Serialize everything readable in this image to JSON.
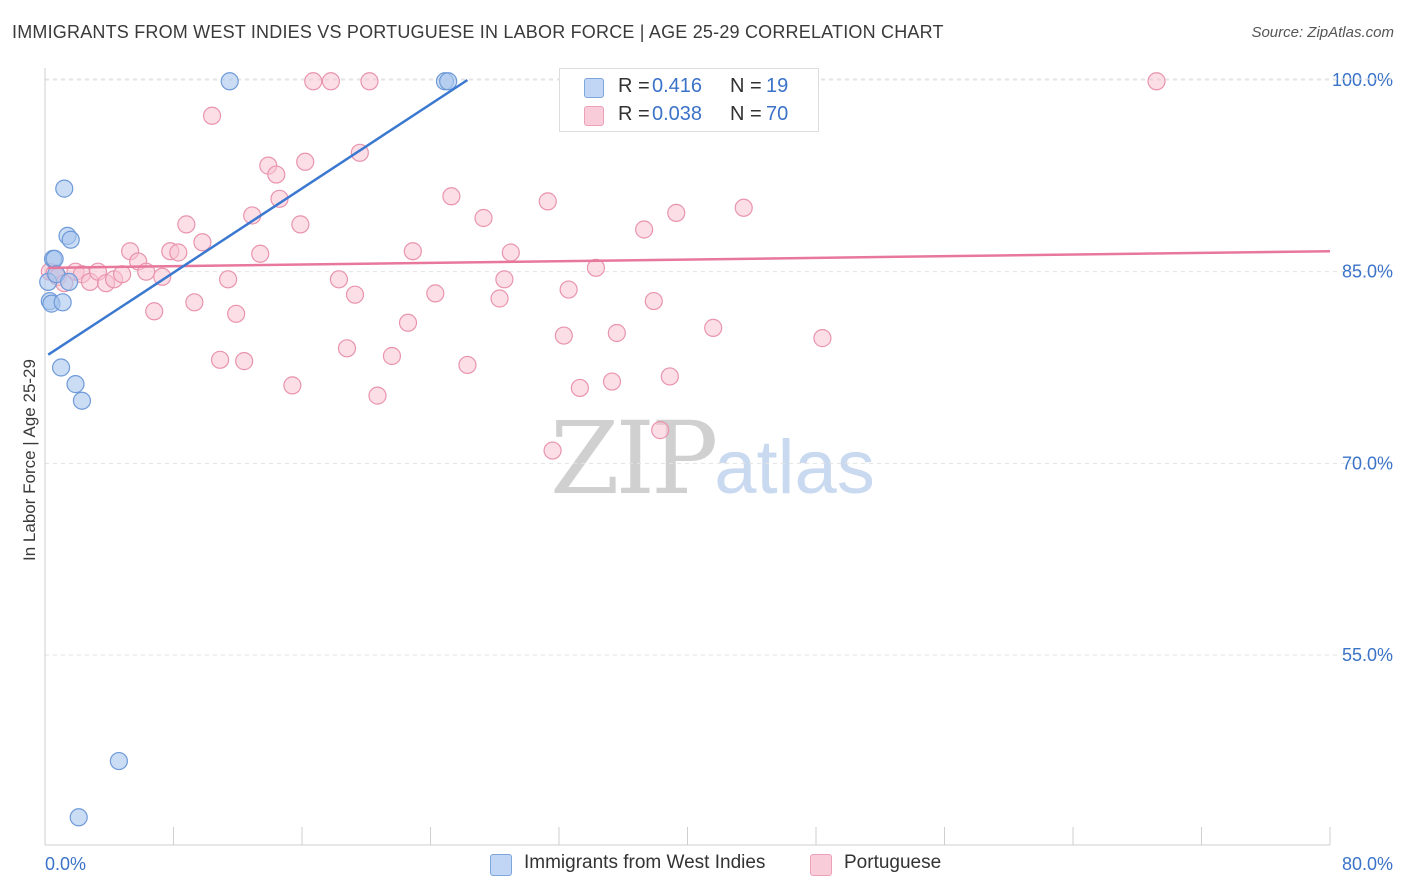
{
  "title": "IMMIGRANTS FROM WEST INDIES VS PORTUGUESE IN LABOR FORCE | AGE 25-29 CORRELATION CHART",
  "source": "Source: ZipAtlas.com",
  "watermark": {
    "zip": "ZIP",
    "atlas": "atlas"
  },
  "legend_top": [
    {
      "r_key": "R =",
      "r_val": "0.416",
      "n_key": "N =",
      "n_val": "19"
    },
    {
      "r_key": "R =",
      "r_val": "0.038",
      "n_key": "N =",
      "n_val": "70"
    }
  ],
  "legend_bottom": [
    "Immigrants from West Indies",
    "Portuguese"
  ],
  "chart_data": {
    "type": "scatter",
    "title": "IMMIGRANTS FROM WEST INDIES VS PORTUGUESE IN LABOR FORCE | AGE 25-29 CORRELATION CHART",
    "xlabel": "",
    "ylabel": "In Labor Force | Age 25-29",
    "xlim": [
      0,
      80
    ],
    "ylim": [
      40,
      102
    ],
    "x_tick_labels": [
      "0.0%",
      "80.0%"
    ],
    "y_ticks": [
      55,
      70,
      85,
      100
    ],
    "y_tick_labels": [
      "55.0%",
      "70.0%",
      "85.0%",
      "100.0%"
    ],
    "grid": "horizontal dashed",
    "colors": {
      "west_indies_fill": "#a9c7ef",
      "west_indies_stroke": "#6f9ad8",
      "west_indies_line": "#3b78d0",
      "portuguese_fill": "#f7c3d2",
      "portuguese_stroke": "#e994ae",
      "portuguese_line": "#e8779c",
      "tick_label": "#3b73c8"
    },
    "series": [
      {
        "name": "Immigrants from West Indies",
        "r": 0.416,
        "n": 19,
        "trend": {
          "x": [
            0.2,
            26.3
          ],
          "y": [
            78.5,
            100.0
          ]
        },
        "points": [
          [
            0.2,
            84.2
          ],
          [
            0.3,
            82.7
          ],
          [
            0.4,
            82.5
          ],
          [
            0.5,
            86.0
          ],
          [
            0.6,
            86.0
          ],
          [
            0.7,
            84.8
          ],
          [
            1.0,
            77.5
          ],
          [
            1.1,
            82.6
          ],
          [
            1.2,
            91.5
          ],
          [
            1.4,
            87.8
          ],
          [
            1.5,
            84.2
          ],
          [
            1.6,
            87.5
          ],
          [
            1.9,
            76.2
          ],
          [
            2.3,
            74.9
          ],
          [
            4.6,
            46.7
          ],
          [
            2.1,
            42.3
          ],
          [
            11.5,
            99.9
          ],
          [
            24.9,
            99.9
          ],
          [
            25.1,
            99.9
          ]
        ]
      },
      {
        "name": "Portuguese",
        "r": 0.038,
        "n": 70,
        "trend": {
          "x": [
            0.2,
            80.0
          ],
          "y": [
            85.3,
            86.6
          ]
        },
        "points": [
          [
            0.3,
            85.0
          ],
          [
            0.6,
            84.9
          ],
          [
            0.8,
            84.6
          ],
          [
            1.2,
            84.1
          ],
          [
            1.9,
            85.0
          ],
          [
            2.3,
            84.8
          ],
          [
            2.8,
            84.2
          ],
          [
            3.3,
            85.0
          ],
          [
            3.8,
            84.1
          ],
          [
            4.3,
            84.4
          ],
          [
            4.8,
            84.8
          ],
          [
            5.3,
            86.6
          ],
          [
            5.8,
            85.8
          ],
          [
            6.3,
            85.0
          ],
          [
            6.8,
            81.9
          ],
          [
            7.3,
            84.6
          ],
          [
            7.8,
            86.6
          ],
          [
            8.3,
            86.5
          ],
          [
            8.8,
            88.7
          ],
          [
            9.3,
            82.6
          ],
          [
            9.8,
            87.3
          ],
          [
            10.4,
            97.2
          ],
          [
            10.9,
            78.1
          ],
          [
            11.4,
            84.4
          ],
          [
            11.9,
            81.7
          ],
          [
            12.4,
            78.0
          ],
          [
            12.9,
            89.4
          ],
          [
            13.4,
            86.4
          ],
          [
            13.9,
            93.3
          ],
          [
            14.4,
            92.6
          ],
          [
            14.6,
            90.7
          ],
          [
            15.4,
            76.1
          ],
          [
            15.9,
            88.7
          ],
          [
            16.2,
            93.6
          ],
          [
            16.7,
            99.9
          ],
          [
            17.8,
            99.9
          ],
          [
            18.3,
            84.4
          ],
          [
            18.8,
            79.0
          ],
          [
            19.3,
            83.2
          ],
          [
            19.6,
            94.3
          ],
          [
            20.2,
            99.9
          ],
          [
            20.7,
            75.3
          ],
          [
            21.6,
            78.4
          ],
          [
            22.6,
            81.0
          ],
          [
            22.9,
            86.6
          ],
          [
            24.3,
            83.3
          ],
          [
            25.3,
            90.9
          ],
          [
            26.3,
            77.7
          ],
          [
            27.3,
            89.2
          ],
          [
            28.3,
            82.9
          ],
          [
            28.6,
            84.4
          ],
          [
            29.0,
            86.5
          ],
          [
            31.3,
            90.5
          ],
          [
            31.6,
            71.0
          ],
          [
            32.3,
            80.0
          ],
          [
            32.6,
            83.6
          ],
          [
            33.3,
            75.9
          ],
          [
            34.3,
            85.3
          ],
          [
            35.3,
            76.4
          ],
          [
            35.6,
            80.2
          ],
          [
            37.3,
            88.3
          ],
          [
            37.9,
            82.7
          ],
          [
            38.3,
            72.6
          ],
          [
            38.9,
            76.8
          ],
          [
            39.3,
            89.6
          ],
          [
            41.6,
            80.6
          ],
          [
            43.5,
            90.0
          ],
          [
            47.6,
            99.9
          ],
          [
            48.4,
            79.8
          ],
          [
            69.2,
            99.9
          ]
        ]
      }
    ]
  }
}
